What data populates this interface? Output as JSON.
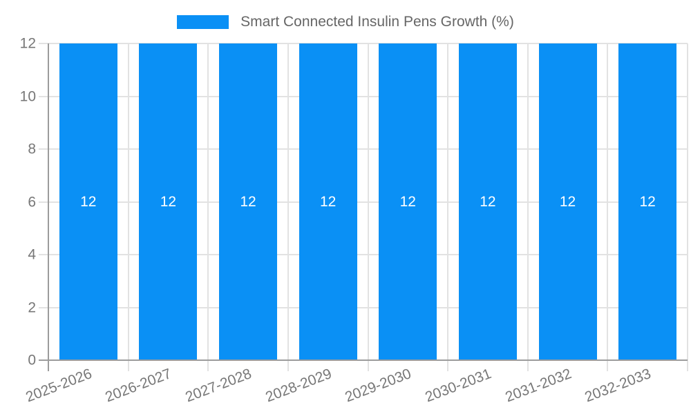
{
  "chart_data": {
    "type": "bar",
    "title": "",
    "legend": {
      "position": "top",
      "label": "Smart Connected Insulin Pens Growth (%)"
    },
    "categories": [
      "2025-2026",
      "2026-2027",
      "2027-2028",
      "2028-2029",
      "2029-2030",
      "2030-2031",
      "2031-2032",
      "2032-2033"
    ],
    "series": [
      {
        "name": "Smart Connected Insulin Pens Growth (%)",
        "values": [
          12,
          12,
          12,
          12,
          12,
          12,
          12,
          12
        ]
      }
    ],
    "bar_labels": [
      "12",
      "12",
      "12",
      "12",
      "12",
      "12",
      "12",
      "12"
    ],
    "xlabel": "",
    "ylabel": "",
    "ylim": [
      0,
      12
    ],
    "yticks": [
      0,
      2,
      4,
      6,
      8,
      10,
      12
    ],
    "grid": true,
    "colors": {
      "bar": "#0a90f5",
      "bar_label": "#ffffff",
      "tick_text": "#777777",
      "legend_text": "#666666",
      "grid_line": "#e2e2e2",
      "axis_line": "#9c9c9c",
      "background": "#ffffff"
    }
  }
}
